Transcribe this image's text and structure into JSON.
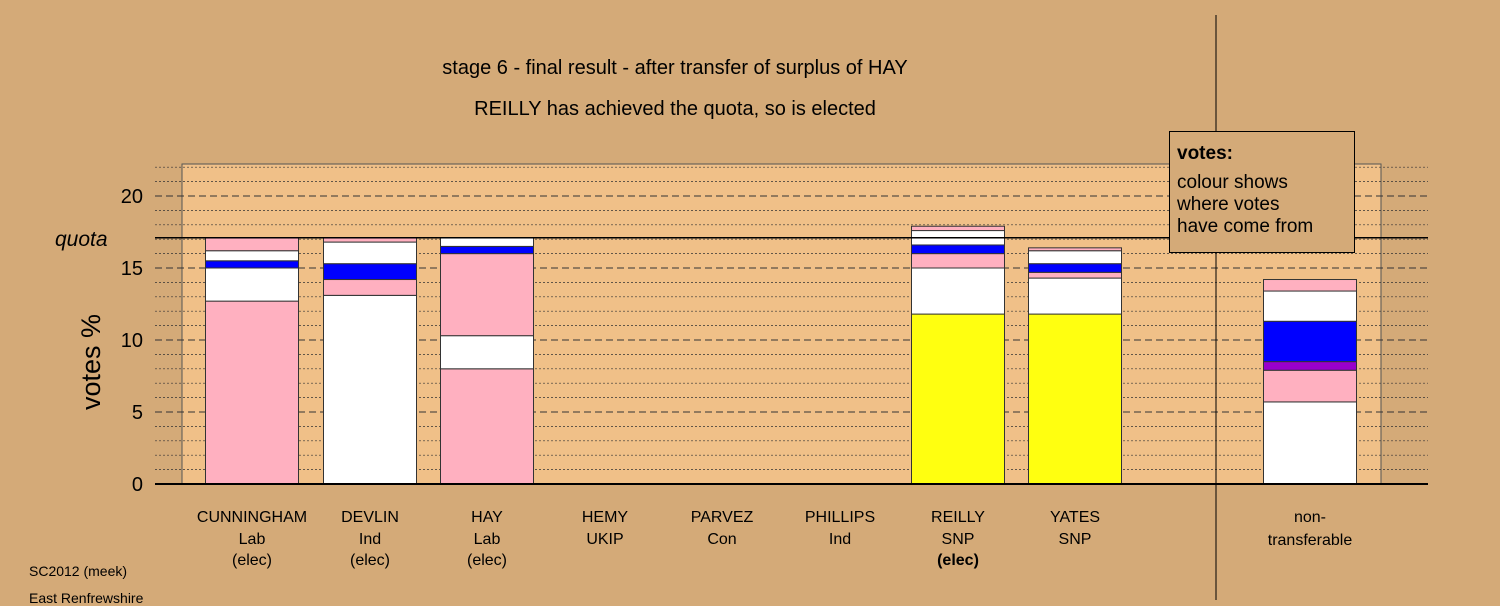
{
  "chart_data": {
    "type": "bar",
    "stacked": true,
    "title": "stage 6 - final result - after transfer of surplus of HAY",
    "subtitle": "REILLY has achieved the quota, so is elected",
    "ylabel": "votes %",
    "ylim": [
      0,
      22
    ],
    "yticks": [
      "0",
      "5",
      "10",
      "15",
      "20"
    ],
    "quota_label": "quota",
    "quota_value": 17.1,
    "grid": "dashed major, dotted minor",
    "candidates": [
      {
        "name": "CUNNINGHAM",
        "party": "Lab",
        "status": "(elec)",
        "status_bold": false,
        "segments": [
          {
            "value": 12.7,
            "color": "#ffb0c0"
          },
          {
            "value": 2.3,
            "color": "#ffffff"
          },
          {
            "value": 0.5,
            "color": "#0000ff"
          },
          {
            "value": 0.7,
            "color": "#ffffff"
          },
          {
            "value": 0.9,
            "color": "#ffb0c0"
          }
        ]
      },
      {
        "name": "DEVLIN",
        "party": "Ind",
        "status": "(elec)",
        "status_bold": false,
        "segments": [
          {
            "value": 13.1,
            "color": "#ffffff"
          },
          {
            "value": 1.1,
            "color": "#ffb0c0"
          },
          {
            "value": 1.1,
            "color": "#0000ff"
          },
          {
            "value": 1.5,
            "color": "#ffffff"
          },
          {
            "value": 0.3,
            "color": "#ffb0c0"
          }
        ]
      },
      {
        "name": "HAY",
        "party": "Lab",
        "status": "(elec)",
        "status_bold": false,
        "segments": [
          {
            "value": 8.0,
            "color": "#ffb0c0"
          },
          {
            "value": 2.3,
            "color": "#ffffff"
          },
          {
            "value": 5.7,
            "color": "#ffb0c0"
          },
          {
            "value": 0.5,
            "color": "#0000ff"
          },
          {
            "value": 0.6,
            "color": "#ffffff"
          }
        ]
      },
      {
        "name": "HEMY",
        "party": "UKIP",
        "status": "",
        "status_bold": false,
        "segments": []
      },
      {
        "name": "PARVEZ",
        "party": "Con",
        "status": "",
        "status_bold": false,
        "segments": []
      },
      {
        "name": "PHILLIPS",
        "party": "Ind",
        "status": "",
        "status_bold": false,
        "segments": []
      },
      {
        "name": "REILLY",
        "party": "SNP",
        "status": "(elec)",
        "status_bold": true,
        "segments": [
          {
            "value": 11.8,
            "color": "#ffff10"
          },
          {
            "value": 3.2,
            "color": "#ffffff"
          },
          {
            "value": 1.0,
            "color": "#ffb0c0"
          },
          {
            "value": 0.6,
            "color": "#0000ff"
          },
          {
            "value": 1.0,
            "color": "#ffffff"
          },
          {
            "value": 0.3,
            "color": "#ffb0c0"
          }
        ]
      },
      {
        "name": "YATES",
        "party": "SNP",
        "status": "",
        "status_bold": false,
        "segments": [
          {
            "value": 11.8,
            "color": "#ffff10"
          },
          {
            "value": 2.5,
            "color": "#ffffff"
          },
          {
            "value": 0.4,
            "color": "#ffb0c0"
          },
          {
            "value": 0.6,
            "color": "#0000ff"
          },
          {
            "value": 0.9,
            "color": "#ffffff"
          },
          {
            "value": 0.2,
            "color": "#ffb0c0"
          }
        ]
      }
    ],
    "nontransferable": {
      "label1": "non-",
      "label2": "transferable",
      "segments": [
        {
          "value": 5.7,
          "color": "#ffffff"
        },
        {
          "value": 2.2,
          "color": "#ffb0c0"
        },
        {
          "value": 0.6,
          "color": "#9900cc"
        },
        {
          "value": 2.8,
          "color": "#0000ff"
        },
        {
          "value": 2.1,
          "color": "#ffffff"
        },
        {
          "value": 0.8,
          "color": "#ffb0c0"
        }
      ]
    }
  },
  "legend": {
    "title": "votes:",
    "line1": "colour shows",
    "line2": "where votes",
    "line3": "have come from"
  },
  "footer": {
    "line1": "SC2012 (meek)",
    "line2": "East Renfrewshire"
  },
  "colors": {
    "background": "#d4aa78",
    "plot_area": "#f0c088"
  }
}
